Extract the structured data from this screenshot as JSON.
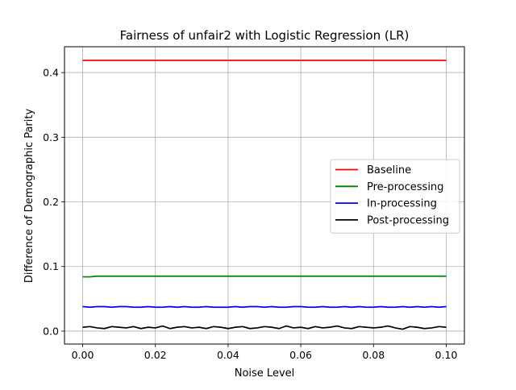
{
  "chart_data": {
    "type": "line",
    "title": "Fairness of unfair2 with Logistic Regression (LR)",
    "xlabel": "Noise Level",
    "ylabel": "Difference of Demographic Parity",
    "xlim": [
      -0.005,
      0.105
    ],
    "ylim": [
      -0.02,
      0.44
    ],
    "xticks": [
      0.0,
      0.02,
      0.04,
      0.06,
      0.08,
      0.1
    ],
    "xtick_labels": [
      "0.00",
      "0.02",
      "0.04",
      "0.06",
      "0.08",
      "0.10"
    ],
    "yticks": [
      0.0,
      0.1,
      0.2,
      0.3,
      0.4
    ],
    "ytick_labels": [
      "0.0",
      "0.1",
      "0.2",
      "0.3",
      "0.4"
    ],
    "grid": true,
    "legend_position": "center-right",
    "x": [
      0.0,
      0.002,
      0.004,
      0.006,
      0.008,
      0.01,
      0.012,
      0.014,
      0.016,
      0.018,
      0.02,
      0.022,
      0.024,
      0.026,
      0.028,
      0.03,
      0.032,
      0.034,
      0.036,
      0.038,
      0.04,
      0.042,
      0.044,
      0.046,
      0.048,
      0.05,
      0.052,
      0.054,
      0.056,
      0.058,
      0.06,
      0.062,
      0.064,
      0.066,
      0.068,
      0.07,
      0.072,
      0.074,
      0.076,
      0.078,
      0.08,
      0.082,
      0.084,
      0.086,
      0.088,
      0.09,
      0.092,
      0.094,
      0.096,
      0.098,
      0.1
    ],
    "series": [
      {
        "name": "Baseline",
        "color": "#ff0000",
        "values": [
          0.419,
          0.419,
          0.419,
          0.419,
          0.419,
          0.419,
          0.419,
          0.419,
          0.419,
          0.419,
          0.419,
          0.419,
          0.419,
          0.419,
          0.419,
          0.419,
          0.419,
          0.419,
          0.419,
          0.419,
          0.419,
          0.419,
          0.419,
          0.419,
          0.419,
          0.419,
          0.419,
          0.419,
          0.419,
          0.419,
          0.419,
          0.419,
          0.419,
          0.419,
          0.419,
          0.419,
          0.419,
          0.419,
          0.419,
          0.419,
          0.419,
          0.419,
          0.419,
          0.419,
          0.419,
          0.419,
          0.419,
          0.419,
          0.419,
          0.419,
          0.419
        ]
      },
      {
        "name": "Pre-processing",
        "color": "#008000",
        "values": [
          0.084,
          0.084,
          0.085,
          0.085,
          0.085,
          0.085,
          0.085,
          0.085,
          0.085,
          0.085,
          0.085,
          0.085,
          0.085,
          0.085,
          0.085,
          0.085,
          0.085,
          0.085,
          0.085,
          0.085,
          0.085,
          0.085,
          0.085,
          0.085,
          0.085,
          0.085,
          0.085,
          0.085,
          0.085,
          0.085,
          0.085,
          0.085,
          0.085,
          0.085,
          0.085,
          0.085,
          0.085,
          0.085,
          0.085,
          0.085,
          0.085,
          0.085,
          0.085,
          0.085,
          0.085,
          0.085,
          0.085,
          0.085,
          0.085,
          0.085,
          0.085
        ]
      },
      {
        "name": "In-processing",
        "color": "#0000ff",
        "values": [
          0.038,
          0.037,
          0.038,
          0.038,
          0.037,
          0.038,
          0.038,
          0.037,
          0.037,
          0.038,
          0.037,
          0.037,
          0.038,
          0.037,
          0.038,
          0.037,
          0.037,
          0.038,
          0.037,
          0.037,
          0.037,
          0.038,
          0.037,
          0.038,
          0.038,
          0.037,
          0.038,
          0.037,
          0.037,
          0.038,
          0.038,
          0.037,
          0.037,
          0.038,
          0.037,
          0.037,
          0.038,
          0.037,
          0.038,
          0.037,
          0.037,
          0.038,
          0.037,
          0.037,
          0.038,
          0.037,
          0.038,
          0.037,
          0.038,
          0.037,
          0.038
        ]
      },
      {
        "name": "Post-processing",
        "color": "#000000",
        "values": [
          0.006,
          0.007,
          0.005,
          0.004,
          0.007,
          0.006,
          0.005,
          0.007,
          0.004,
          0.006,
          0.005,
          0.008,
          0.004,
          0.006,
          0.007,
          0.005,
          0.006,
          0.004,
          0.007,
          0.006,
          0.004,
          0.006,
          0.007,
          0.004,
          0.005,
          0.007,
          0.006,
          0.004,
          0.008,
          0.005,
          0.006,
          0.004,
          0.007,
          0.005,
          0.006,
          0.008,
          0.005,
          0.004,
          0.007,
          0.006,
          0.005,
          0.006,
          0.008,
          0.005,
          0.003,
          0.007,
          0.006,
          0.004,
          0.005,
          0.007,
          0.006
        ]
      }
    ]
  }
}
